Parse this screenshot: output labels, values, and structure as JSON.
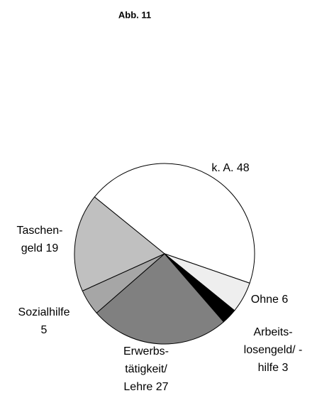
{
  "chart_data": {
    "type": "pie",
    "title": "Abb. 11",
    "values": [
      48,
      6,
      3,
      27,
      5,
      19
    ],
    "value_labels": [
      [
        "k. A. 48"
      ],
      [
        "Ohne 6"
      ],
      [
        "Arbeits-",
        "losengeld/ -",
        "hilfe 3"
      ],
      [
        "Erwerbs-",
        "tätigkeit/",
        "Lehre 27"
      ],
      [
        "Sozialhilfe",
        "5"
      ],
      [
        "Taschen-",
        "geld 19"
      ]
    ],
    "colors": [
      "#ffffff",
      "#eeeeee",
      "#000000",
      "#808080",
      "#a6a6a6",
      "#c0c0c0"
    ]
  }
}
